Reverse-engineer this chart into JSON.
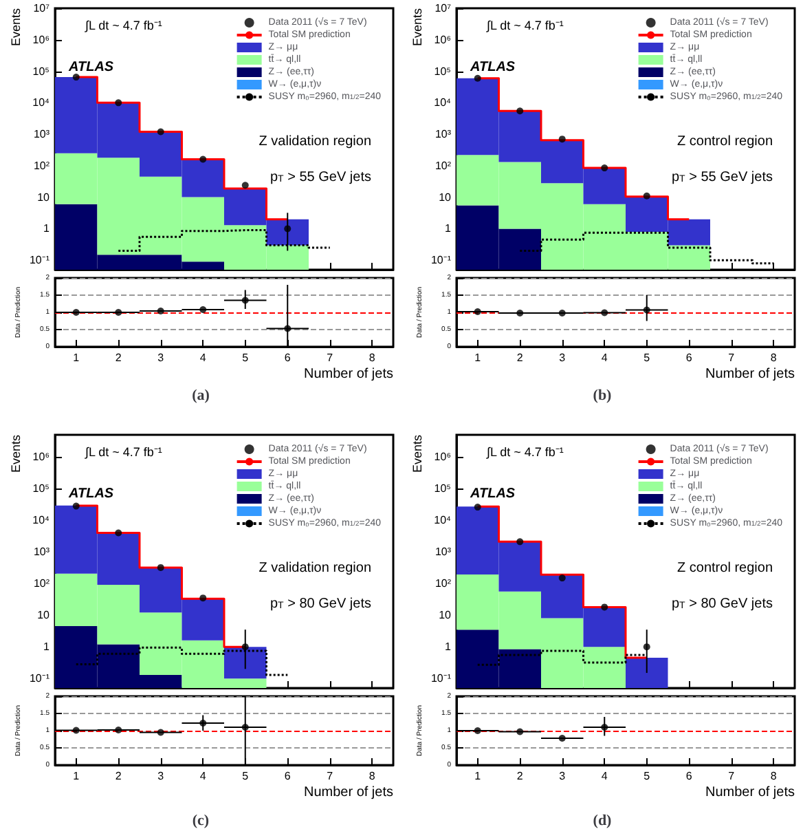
{
  "chart_data": [
    {
      "type": "bar",
      "stacked": true,
      "x": [
        1,
        2,
        3,
        4,
        5,
        6,
        7
      ],
      "xlim": [
        0.5,
        8.5
      ],
      "xticks": [
        1,
        2,
        3,
        4,
        5,
        6,
        7,
        8
      ],
      "ylabel": "Events",
      "log": "y",
      "ylim": [
        0.05,
        10000000
      ],
      "yticks": [
        {
          "value": 0.1,
          "label": "10⁻¹"
        },
        1,
        10,
        {
          "value": 100,
          "label": "10²"
        },
        {
          "value": 1000,
          "label": "10³"
        },
        {
          "value": 10000,
          "label": "10⁴"
        },
        {
          "value": 100000,
          "label": "10⁵"
        },
        {
          "value": 1000000,
          "label": "10⁶"
        },
        {
          "value": 10000000,
          "label": "10⁷"
        }
      ],
      "tick_labels": "y",
      "legend": "top right",
      "annotations": [
        "∫L dt ~ 4.7 fb⁻¹",
        "ATLAS",
        "Z validation region",
        "p$_{T}$ > 55 GeV jets"
      ],
      "series": [
        {
          "name": "Data 2011 (√s = 7 TeV)",
          "type": "scatter",
          "marker": "circle",
          "color": "#000000",
          "values": [
            65000,
            10000,
            1200,
            160,
            24,
            1,
            null
          ],
          "errors": [
            null,
            null,
            null,
            null,
            null,
            [
              0.2,
              3.2
            ],
            null
          ]
        },
        {
          "name": "Total SM prediction",
          "type": "step",
          "color": "#ff0000",
          "values": [
            65000,
            10000,
            1200,
            160,
            19,
            2,
            null
          ]
        },
        {
          "name": "W→ (e,μ,τ)ν",
          "color": "#3399ff",
          "values": [
            null,
            null,
            null,
            null,
            null,
            null,
            null
          ]
        },
        {
          "name": "Z→ (ee,ττ)",
          "color": "#000066",
          "values": [
            6,
            0.15,
            0.15,
            0.09,
            null,
            null,
            null
          ]
        },
        {
          "name": "tt̄→ ql,ll",
          "color": "#99ff99",
          "values": [
            244,
            180,
            45,
            10,
            1.3,
            0.3,
            null
          ]
        },
        {
          "name": "Z→ μμ",
          "color": "#3333cc",
          "values": [
            65000,
            10000,
            1150,
            150,
            18,
            1.7,
            null
          ]
        },
        {
          "name": "SUSY m₀=2960, m$_{1/2}$=240",
          "type": "step",
          "line_style": "dotted",
          "color": "#000000",
          "values": [
            null,
            0.2,
            0.55,
            0.85,
            0.9,
            0.3,
            0.25
          ]
        }
      ]
    },
    {
      "type": "scatter",
      "x": [
        1,
        2,
        3,
        4,
        5,
        6
      ],
      "xlim": [
        0.5,
        8.5
      ],
      "xticks": [
        1,
        2,
        3,
        4,
        5,
        6,
        7,
        8
      ],
      "values": [
        1.0,
        1.0,
        1.04,
        1.08,
        1.35,
        0.53
      ],
      "errors": [
        null,
        null,
        null,
        null,
        [
          1.1,
          1.65
        ],
        [
          0,
          1.8
        ]
      ],
      "xerrors": [
        0.5,
        0.5,
        0.5,
        0.5,
        0.5,
        0.5
      ],
      "ylim": [
        0,
        2
      ],
      "yticks": [
        0,
        0.5,
        1,
        1.5,
        2
      ],
      "ylabel": "Data / Prediction",
      "xlabel": "Number of jets",
      "grid": "y",
      "marker": "circle",
      "ref_lines": [
        {
          "axis": "y",
          "value": 1,
          "color": "#ff0000",
          "line_style": "dashed"
        }
      ],
      "title": "(a)"
    },
    {
      "type": "bar",
      "stacked": true,
      "x": [
        1,
        2,
        3,
        4,
        5,
        6,
        7,
        8
      ],
      "xlim": [
        0.5,
        8.5
      ],
      "xticks": [
        1,
        2,
        3,
        4,
        5,
        6,
        7,
        8
      ],
      "ylabel": "Events",
      "log": "y",
      "ylim": [
        0.05,
        10000000
      ],
      "yticks": [
        {
          "value": 0.1,
          "label": "10⁻¹"
        },
        1,
        10,
        {
          "value": 100,
          "label": "10²"
        },
        {
          "value": 1000,
          "label": "10³"
        },
        {
          "value": 10000,
          "label": "10⁴"
        },
        {
          "value": 100000,
          "label": "10⁵"
        },
        {
          "value": 1000000,
          "label": "10⁶"
        },
        {
          "value": 10000000,
          "label": "10⁷"
        }
      ],
      "tick_labels": "y",
      "legend": "top right",
      "annotations": [
        "∫L dt ~ 4.7 fb⁻¹",
        "ATLAS",
        "Z control region",
        "p$_{T}$ > 55 GeV jets"
      ],
      "series": [
        {
          "name": "Data 2011 (√s = 7 TeV)",
          "type": "scatter",
          "marker": "circle",
          "color": "#000000",
          "values": [
            60000,
            5500,
            700,
            85,
            11,
            null,
            null,
            null
          ]
        },
        {
          "name": "Total SM prediction",
          "type": "step",
          "color": "#ff0000",
          "values": [
            60000,
            5500,
            650,
            85,
            10.5,
            2,
            null,
            null
          ]
        },
        {
          "name": "W→ (e,μ,τ)ν",
          "color": "#3399ff",
          "values": [
            null,
            null,
            null,
            null,
            null,
            null,
            null,
            null
          ]
        },
        {
          "name": "Z→ (ee,ττ)",
          "color": "#000066",
          "values": [
            5.5,
            1,
            null,
            null,
            null,
            null,
            null,
            null
          ]
        },
        {
          "name": "tt̄→ ql,ll",
          "color": "#99ff99",
          "values": [
            215,
            130,
            28,
            6,
            0.8,
            0.3,
            null,
            null
          ]
        },
        {
          "name": "Z→ μμ",
          "color": "#3333cc",
          "values": [
            60000,
            5400,
            620,
            79,
            9.7,
            1.7,
            null,
            null
          ]
        },
        {
          "name": "SUSY m₀=2960, m$_{1/2}$=240",
          "type": "step",
          "line_style": "dotted",
          "color": "#000000",
          "values": [
            null,
            0.2,
            0.45,
            0.75,
            0.75,
            0.25,
            0.1,
            0.08
          ]
        }
      ]
    },
    {
      "type": "scatter",
      "x": [
        1,
        2,
        3,
        4,
        5
      ],
      "xlim": [
        0.5,
        8.5
      ],
      "xticks": [
        1,
        2,
        3,
        4,
        5,
        6,
        7,
        8
      ],
      "values": [
        1.02,
        0.98,
        0.98,
        0.99,
        1.07
      ],
      "errors": [
        null,
        null,
        null,
        null,
        [
          0.75,
          1.5
        ]
      ],
      "xerrors": [
        0.5,
        0.5,
        0.5,
        0.5,
        0.5
      ],
      "ylim": [
        0,
        2
      ],
      "yticks": [
        0,
        0.5,
        1,
        1.5,
        2
      ],
      "ylabel": "Data / Prediction",
      "xlabel": "Number of jets",
      "grid": "y",
      "marker": "circle",
      "ref_lines": [
        {
          "axis": "y",
          "value": 1,
          "color": "#ff0000",
          "line_style": "dashed"
        }
      ],
      "title": "(b)"
    },
    {
      "type": "bar",
      "stacked": true,
      "x": [
        1,
        2,
        3,
        4,
        5,
        6
      ],
      "xlim": [
        0.5,
        8.5
      ],
      "xticks": [
        1,
        2,
        3,
        4,
        5,
        6,
        7,
        8
      ],
      "ylabel": "Events",
      "log": "y",
      "ylim": [
        0.05,
        5000000
      ],
      "yticks": [
        {
          "value": 0.1,
          "label": "10⁻¹"
        },
        1,
        10,
        {
          "value": 100,
          "label": "10²"
        },
        {
          "value": 1000,
          "label": "10³"
        },
        {
          "value": 10000,
          "label": "10⁴"
        },
        {
          "value": 100000,
          "label": "10⁵"
        },
        {
          "value": 1000000,
          "label": "10⁶"
        }
      ],
      "tick_labels": "y",
      "legend": "top right",
      "annotations": [
        "∫L dt ~ 4.7 fb⁻¹",
        "ATLAS",
        "Z validation region",
        "p$_{T}$ > 80 GeV jets"
      ],
      "series": [
        {
          "name": "Data 2011 (√s = 7 TeV)",
          "type": "scatter",
          "marker": "circle",
          "color": "#000000",
          "values": [
            28000,
            4000,
            320,
            35,
            1,
            null
          ],
          "errors": [
            null,
            null,
            null,
            null,
            [
              0.2,
              3.5
            ],
            null
          ]
        },
        {
          "name": "Total SM prediction",
          "type": "step",
          "color": "#ff0000",
          "values": [
            29000,
            4000,
            320,
            33,
            1,
            null
          ]
        },
        {
          "name": "W→ (e,μ,τ)ν",
          "color": "#3399ff",
          "values": [
            null,
            null,
            null,
            null,
            null,
            null
          ]
        },
        {
          "name": "Z→ (ee,ττ)",
          "color": "#000066",
          "values": [
            4.5,
            1.2,
            0.13,
            null,
            null,
            null
          ]
        },
        {
          "name": "tt̄→ ql,ll",
          "color": "#99ff99",
          "values": [
            200,
            90,
            12,
            1.6,
            0.1,
            null
          ]
        },
        {
          "name": "Z→ μμ",
          "color": "#3333cc",
          "values": [
            29000,
            3900,
            310,
            31,
            0.9,
            null
          ]
        },
        {
          "name": "SUSY m₀=2960, m$_{1/2}$=240",
          "type": "step",
          "line_style": "dotted",
          "color": "#000000",
          "values": [
            0.28,
            0.6,
            0.95,
            0.6,
            0.75,
            0.13
          ]
        }
      ]
    },
    {
      "type": "scatter",
      "x": [
        1,
        2,
        3,
        4,
        5
      ],
      "xlim": [
        0.5,
        8.5
      ],
      "xticks": [
        1,
        2,
        3,
        4,
        5,
        6,
        7,
        8
      ],
      "values": [
        1.01,
        1.02,
        0.95,
        1.22,
        1.1
      ],
      "errors": [
        null,
        null,
        null,
        [
          1.0,
          1.45
        ],
        [
          0,
          2
        ]
      ],
      "xerrors": [
        0.5,
        0.5,
        0.5,
        0.5,
        0.5
      ],
      "ylim": [
        0,
        2
      ],
      "yticks": [
        0,
        0.5,
        1,
        1.5,
        2
      ],
      "ylabel": "Data / Prediction",
      "xlabel": "Number of jets",
      "grid": "y",
      "marker": "circle",
      "ref_lines": [
        {
          "axis": "y",
          "value": 1,
          "color": "#ff0000",
          "line_style": "dashed"
        }
      ],
      "title": "(c)"
    },
    {
      "type": "bar",
      "stacked": true,
      "x": [
        1,
        2,
        3,
        4,
        5
      ],
      "xlim": [
        0.5,
        8.5
      ],
      "xticks": [
        1,
        2,
        3,
        4,
        5,
        6,
        7,
        8
      ],
      "ylabel": "Events",
      "log": "y",
      "ylim": [
        0.05,
        5000000
      ],
      "yticks": [
        {
          "value": 0.1,
          "label": "10⁻¹"
        },
        1,
        10,
        {
          "value": 100,
          "label": "10²"
        },
        {
          "value": 1000,
          "label": "10³"
        },
        {
          "value": 10000,
          "label": "10⁴"
        },
        {
          "value": 100000,
          "label": "10⁵"
        },
        {
          "value": 1000000,
          "label": "10⁶"
        }
      ],
      "tick_labels": "y",
      "legend": "top right",
      "annotations": [
        "∫L dt ~ 4.7 fb⁻¹",
        "ATLAS",
        "Z control region",
        "p$_{T}$ > 80 GeV jets"
      ],
      "series": [
        {
          "name": "Data 2011 (√s = 7 TeV)",
          "type": "scatter",
          "marker": "circle",
          "color": "#000000",
          "values": [
            26000,
            2100,
            150,
            18,
            1
          ],
          "errors": [
            null,
            null,
            null,
            null,
            [
              0.15,
              3.5
            ]
          ]
        },
        {
          "name": "Total SM prediction",
          "type": "step",
          "color": "#ff0000",
          "values": [
            27000,
            2100,
            190,
            18,
            0.45
          ]
        },
        {
          "name": "W→ (e,μ,τ)ν",
          "color": "#3399ff",
          "values": [
            null,
            null,
            null,
            null,
            null
          ]
        },
        {
          "name": "Z→ (ee,ττ)",
          "color": "#000066",
          "values": [
            3.5,
            0.85,
            null,
            null,
            null
          ]
        },
        {
          "name": "tt̄→ ql,ll",
          "color": "#99ff99",
          "values": [
            190,
            55,
            8,
            1,
            null
          ]
        },
        {
          "name": "Z→ μμ",
          "color": "#3333cc",
          "values": [
            27000,
            2000,
            180,
            17,
            0.45
          ]
        },
        {
          "name": "SUSY m₀=2960, m$_{1/2}$=240",
          "type": "step",
          "line_style": "dotted",
          "color": "#000000",
          "values": [
            0.27,
            0.55,
            0.75,
            0.32,
            0.55
          ]
        }
      ]
    },
    {
      "type": "scatter",
      "x": [
        1,
        2,
        3,
        4
      ],
      "xlim": [
        0.5,
        8.5
      ],
      "xticks": [
        1,
        2,
        3,
        4,
        5,
        6,
        7,
        8
      ],
      "values": [
        1.0,
        0.97,
        0.78,
        1.1
      ],
      "errors": [
        null,
        null,
        null,
        [
          0.85,
          1.4
        ]
      ],
      "xerrors": [
        0.5,
        0.5,
        0.5,
        0.5
      ],
      "ylim": [
        0,
        2
      ],
      "yticks": [
        0,
        0.5,
        1,
        1.5,
        2
      ],
      "ylabel": "Data / Prediction",
      "xlabel": "Number of jets",
      "grid": "y",
      "marker": "circle",
      "ref_lines": [
        {
          "axis": "y",
          "value": 1,
          "color": "#ff0000",
          "line_style": "dashed"
        }
      ],
      "title": "(d)"
    }
  ]
}
